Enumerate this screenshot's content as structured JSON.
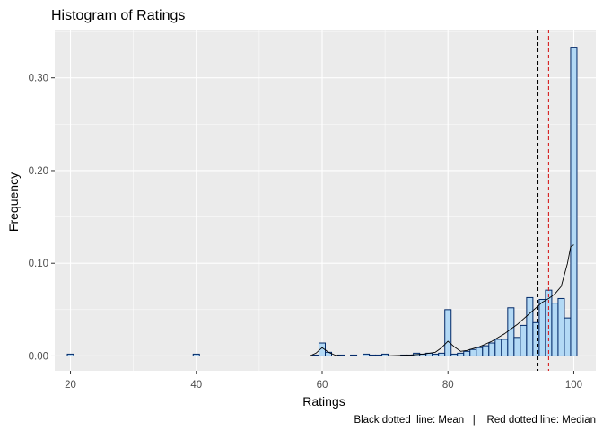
{
  "chart_data": {
    "type": "bar",
    "title": "Histogram of Ratings",
    "xlabel": "Ratings",
    "ylabel": "Frequency",
    "caption": "Black dotted  line: Mean   |    Red dotted line: Median",
    "xlim": [
      17.5,
      103.5
    ],
    "ylim": [
      -0.016,
      0.352
    ],
    "x_ticks": [
      20,
      40,
      60,
      80,
      100
    ],
    "y_ticks": [
      0.0,
      0.1,
      0.2,
      0.3
    ],
    "y_tick_labels": [
      "0.00",
      "0.10",
      "0.20",
      "0.30"
    ],
    "grid": true,
    "bin_width": 1,
    "bins": [
      {
        "x": 20,
        "y": 0.002
      },
      {
        "x": 40,
        "y": 0.002
      },
      {
        "x": 59,
        "y": 0.001
      },
      {
        "x": 60,
        "y": 0.014
      },
      {
        "x": 61,
        "y": 0.004
      },
      {
        "x": 63,
        "y": 0.001
      },
      {
        "x": 65,
        "y": 0.001
      },
      {
        "x": 67,
        "y": 0.002
      },
      {
        "x": 68,
        "y": 0.001
      },
      {
        "x": 69,
        "y": 0.001
      },
      {
        "x": 70,
        "y": 0.002
      },
      {
        "x": 73,
        "y": 0.001
      },
      {
        "x": 74,
        "y": 0.001
      },
      {
        "x": 75,
        "y": 0.003
      },
      {
        "x": 76,
        "y": 0.002
      },
      {
        "x": 77,
        "y": 0.003
      },
      {
        "x": 78,
        "y": 0.002
      },
      {
        "x": 79,
        "y": 0.003
      },
      {
        "x": 80,
        "y": 0.05
      },
      {
        "x": 81,
        "y": 0.002
      },
      {
        "x": 82,
        "y": 0.003
      },
      {
        "x": 83,
        "y": 0.005
      },
      {
        "x": 84,
        "y": 0.007
      },
      {
        "x": 85,
        "y": 0.009
      },
      {
        "x": 86,
        "y": 0.011
      },
      {
        "x": 87,
        "y": 0.014
      },
      {
        "x": 88,
        "y": 0.018
      },
      {
        "x": 89,
        "y": 0.018
      },
      {
        "x": 90,
        "y": 0.052
      },
      {
        "x": 91,
        "y": 0.02
      },
      {
        "x": 92,
        "y": 0.033
      },
      {
        "x": 93,
        "y": 0.063
      },
      {
        "x": 94,
        "y": 0.036
      },
      {
        "x": 95,
        "y": 0.061
      },
      {
        "x": 96,
        "y": 0.071
      },
      {
        "x": 97,
        "y": 0.057
      },
      {
        "x": 98,
        "y": 0.062
      },
      {
        "x": 99,
        "y": 0.041
      },
      {
        "x": 100,
        "y": 0.333
      }
    ],
    "density": {
      "x": [
        20,
        58,
        59,
        60,
        61,
        62,
        63,
        70,
        74,
        76,
        77,
        78,
        79,
        80,
        81,
        82,
        83,
        84,
        85,
        86,
        87,
        88,
        89,
        90,
        91,
        92,
        93,
        94,
        95,
        96,
        97,
        98,
        99,
        99.5,
        100
      ],
      "y": [
        0.0,
        0.0,
        0.003,
        0.009,
        0.004,
        0.001,
        0.0,
        0.0,
        0.001,
        0.002,
        0.003,
        0.004,
        0.009,
        0.016,
        0.01,
        0.005,
        0.006,
        0.008,
        0.01,
        0.013,
        0.016,
        0.02,
        0.024,
        0.029,
        0.034,
        0.04,
        0.046,
        0.052,
        0.058,
        0.062,
        0.067,
        0.075,
        0.1,
        0.118,
        0.12
      ]
    },
    "mean": 94.3,
    "median": 96,
    "colors": {
      "panel": "#ebebeb",
      "grid": "#ffffff",
      "bar_fill": "#b3d9f5",
      "bar_outline": "#002868",
      "density_line": "#000000",
      "mean_line": "#000000",
      "median_line": "#d71e1e"
    }
  }
}
